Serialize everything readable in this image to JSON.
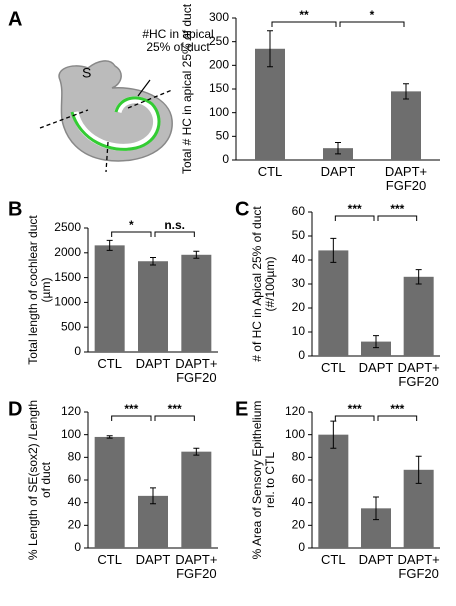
{
  "chart_data": [
    {
      "type": "bar",
      "panel": "A",
      "ylabel": "Total # HC in apical 25% of duct",
      "categories": [
        "CTL",
        "DAPT",
        "DAPT+ FGF20"
      ],
      "values": [
        235,
        25,
        145
      ],
      "errors": [
        38,
        12,
        16
      ],
      "color": "#6e6e6e",
      "ylim": [
        0,
        300
      ],
      "yticks": [
        0,
        50,
        100,
        150,
        200,
        250,
        300
      ],
      "significance": [
        "**",
        "*"
      ]
    },
    {
      "type": "bar",
      "panel": "B",
      "ylabel": "Total length of cochlear duct (µm)",
      "categories": [
        "CTL",
        "DAPT",
        "DAPT+ FGF20"
      ],
      "values": [
        2150,
        1830,
        1960
      ],
      "errors": [
        100,
        75,
        70
      ],
      "color": "#6e6e6e",
      "ylim": [
        0,
        2500
      ],
      "yticks": [
        0,
        500,
        1000,
        1500,
        2000,
        2500
      ],
      "significance": [
        "*",
        "n.s."
      ]
    },
    {
      "type": "bar",
      "panel": "C",
      "ylabel": "# of HC in Apical 25% of duct (#/100µm)",
      "categories": [
        "CTL",
        "DAPT",
        "DAPT+ FGF20"
      ],
      "values": [
        44,
        6,
        33
      ],
      "errors": [
        5,
        2.5,
        3
      ],
      "color": "#6e6e6e",
      "ylim": [
        0,
        60
      ],
      "yticks": [
        0,
        10,
        20,
        30,
        40,
        50,
        60
      ],
      "significance": [
        "***",
        "***"
      ]
    },
    {
      "type": "bar",
      "panel": "D",
      "ylabel": "% Length of SE(sox2) /Length of duct",
      "categories": [
        "CTL",
        "DAPT",
        "DAPT+ FGF20"
      ],
      "values": [
        98,
        46,
        85
      ],
      "errors": [
        1,
        7,
        3
      ],
      "color": "#6e6e6e",
      "ylim": [
        0,
        120
      ],
      "yticks": [
        0,
        20,
        40,
        60,
        80,
        100,
        120
      ],
      "significance": [
        "***",
        "***"
      ]
    },
    {
      "type": "bar",
      "panel": "E",
      "ylabel": "% Area of Sensory Epithelium rel. to CTL",
      "categories": [
        "CTL",
        "DAPT",
        "DAPT+ FGF20"
      ],
      "values": [
        100,
        35,
        69
      ],
      "errors": [
        12,
        10,
        12
      ],
      "color": "#6e6e6e",
      "ylim": [
        0,
        120
      ],
      "yticks": [
        0,
        20,
        40,
        60,
        80,
        100,
        120
      ],
      "significance": [
        "***",
        "***"
      ]
    }
  ],
  "diagram": {
    "labels": [
      "S",
      "#HC in apical 25% of duct"
    ]
  }
}
